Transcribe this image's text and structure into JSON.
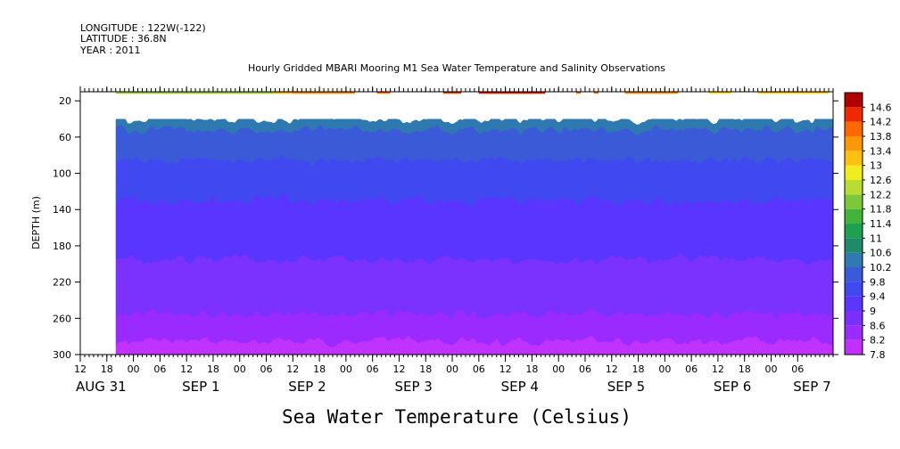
{
  "header": {
    "longitude": "LONGITUDE : 122W(-122)",
    "latitude": "LATITUDE : 36.8N",
    "year": "YEAR : 2011"
  },
  "chart_data": {
    "type": "heatmap",
    "title": "Hourly Gridded MBARI Mooring M1 Sea Water Temperature and Salinity Observations",
    "xlabel": "Sea Water Temperature (Celsius)",
    "ylabel": "DEPTH (m)",
    "x_axis": {
      "start_hours": 12,
      "end_hours": 182,
      "hour_ticks": [
        {
          "h": 12,
          "label": "12"
        },
        {
          "h": 18,
          "label": "18"
        },
        {
          "h": 24,
          "label": "00"
        },
        {
          "h": 30,
          "label": "06"
        },
        {
          "h": 36,
          "label": "12"
        },
        {
          "h": 42,
          "label": "18"
        },
        {
          "h": 48,
          "label": "00"
        },
        {
          "h": 54,
          "label": "06"
        },
        {
          "h": 60,
          "label": "12"
        },
        {
          "h": 66,
          "label": "18"
        },
        {
          "h": 72,
          "label": "00"
        },
        {
          "h": 78,
          "label": "06"
        },
        {
          "h": 84,
          "label": "12"
        },
        {
          "h": 90,
          "label": "18"
        },
        {
          "h": 96,
          "label": "00"
        },
        {
          "h": 102,
          "label": "06"
        },
        {
          "h": 108,
          "label": "12"
        },
        {
          "h": 114,
          "label": "18"
        },
        {
          "h": 120,
          "label": "00"
        },
        {
          "h": 126,
          "label": "06"
        },
        {
          "h": 132,
          "label": "12"
        },
        {
          "h": 138,
          "label": "18"
        },
        {
          "h": 144,
          "label": "00"
        },
        {
          "h": 150,
          "label": "06"
        },
        {
          "h": 156,
          "label": "12"
        },
        {
          "h": 162,
          "label": "18"
        },
        {
          "h": 168,
          "label": "00"
        },
        {
          "h": 174,
          "label": "06"
        }
      ],
      "date_labels": [
        {
          "h": 12,
          "label": "AUG 31"
        },
        {
          "h": 36,
          "label": "SEP  1"
        },
        {
          "h": 60,
          "label": "SEP  2"
        },
        {
          "h": 84,
          "label": "SEP  3"
        },
        {
          "h": 108,
          "label": "SEP  4"
        },
        {
          "h": 132,
          "label": "SEP  5"
        },
        {
          "h": 156,
          "label": "SEP  6"
        },
        {
          "h": 174,
          "label": "SEP  7"
        }
      ]
    },
    "y_axis": {
      "range": [
        10,
        300
      ],
      "inverted": true,
      "ticks": [
        20,
        60,
        100,
        140,
        180,
        220,
        260,
        300
      ]
    },
    "data_start_hours": 20,
    "surface_band_depth": [
      10,
      20
    ],
    "main_band_depth": [
      40,
      300
    ],
    "surface_segments": [
      {
        "start": 20,
        "end": 56,
        "temp": 12.3
      },
      {
        "start": 56,
        "end": 60,
        "temp": 13.3
      },
      {
        "start": 60,
        "end": 74,
        "temp": 13.8
      },
      {
        "start": 79,
        "end": 82,
        "temp": 14.0
      },
      {
        "start": 94,
        "end": 98,
        "temp": 14.4
      },
      {
        "start": 102,
        "end": 117,
        "temp": 14.5
      },
      {
        "start": 124,
        "end": 125,
        "temp": 14.0
      },
      {
        "start": 128,
        "end": 129,
        "temp": 14.0
      },
      {
        "start": 135,
        "end": 147,
        "temp": 13.8
      },
      {
        "start": 154,
        "end": 159,
        "temp": 13.0
      },
      {
        "start": 165,
        "end": 181,
        "temp": 13.2
      }
    ],
    "colorbar": {
      "levels": [
        "7.8",
        "8.2",
        "8.6",
        "9",
        "9.4",
        "9.8",
        "10.2",
        "10.6",
        "11",
        "11.4",
        "11.8",
        "12.2",
        "12.6",
        "13",
        "13.4",
        "13.8",
        "14.2",
        "14.6"
      ],
      "colors": [
        "#c030ff",
        "#9a2cff",
        "#7b30ff",
        "#5a36ff",
        "#4048f0",
        "#3a5ad8",
        "#2f7ab0",
        "#1e8c6a",
        "#1ea050",
        "#42b43a",
        "#7cc838",
        "#b8dc30",
        "#f0ec20",
        "#ffc010",
        "#ff9808",
        "#ff6800",
        "#f02800",
        "#b00000"
      ]
    }
  }
}
